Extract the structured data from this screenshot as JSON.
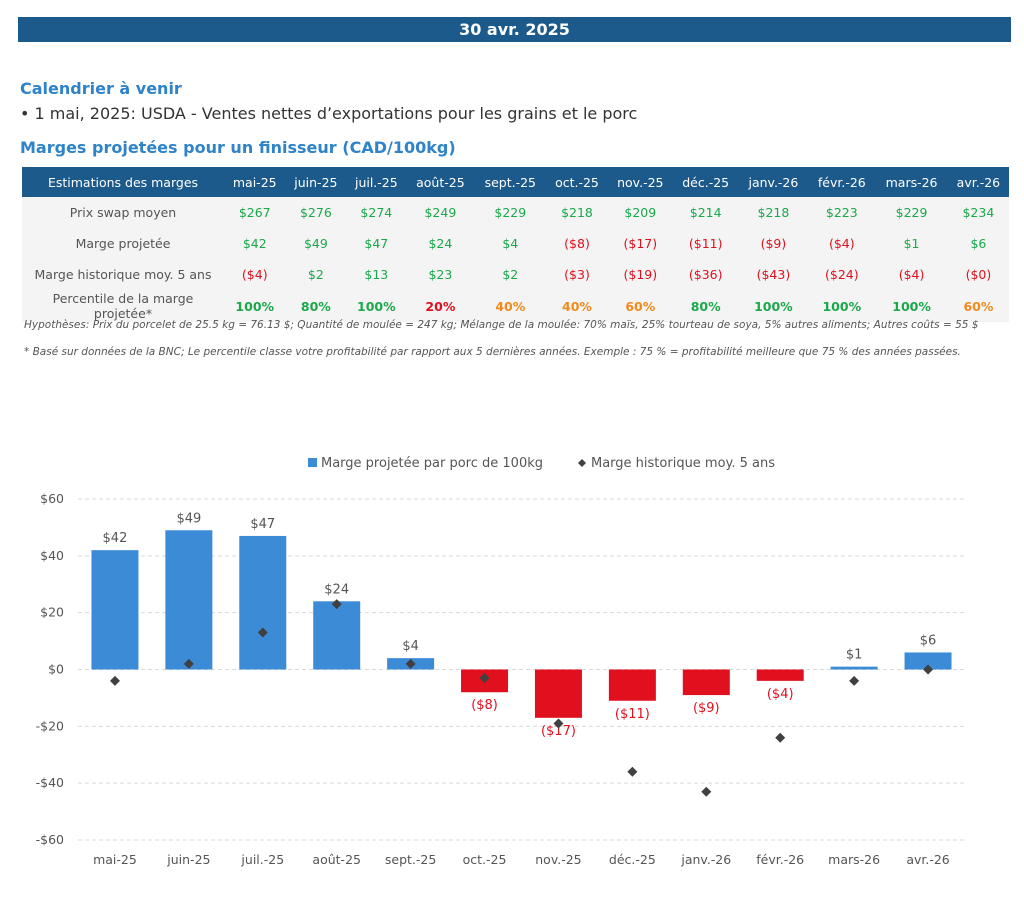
{
  "header": {
    "date": "30 avr. 2025"
  },
  "calendar": {
    "title": "Calendrier à venir",
    "item": "• 1 mai, 2025: USDA - Ventes nettes d’exportations pour les grains et le porc"
  },
  "margins_title": "Marges projetées pour un finisseur (CAD/100kg)",
  "table": {
    "corner": "Estimations des marges",
    "months": [
      "mai-25",
      "juin-25",
      "juil.-25",
      "août-25",
      "sept.-25",
      "oct.-25",
      "nov.-25",
      "déc.-25",
      "janv.-26",
      "févr.-26",
      "mars-26",
      "avr.-26"
    ],
    "rows": [
      {
        "label": "Prix swap moyen",
        "cells": [
          "$267",
          "$276",
          "$274",
          "$249",
          "$229",
          "$218",
          "$209",
          "$214",
          "$218",
          "$223",
          "$229",
          "$234"
        ],
        "colors": [
          "#1aa84a",
          "#1aa84a",
          "#1aa84a",
          "#1aa84a",
          "#1aa84a",
          "#1aa84a",
          "#1aa84a",
          "#1aa84a",
          "#1aa84a",
          "#1aa84a",
          "#1aa84a",
          "#1aa84a"
        ]
      },
      {
        "label": "Marge projetée",
        "cells": [
          "$42",
          "$49",
          "$47",
          "$24",
          "$4",
          "($8)",
          "($17)",
          "($11)",
          "($9)",
          "($4)",
          "$1",
          "$6"
        ],
        "colors": [
          "#1aa84a",
          "#1aa84a",
          "#1aa84a",
          "#1aa84a",
          "#1aa84a",
          "#e0101f",
          "#e0101f",
          "#e0101f",
          "#e0101f",
          "#e0101f",
          "#1aa84a",
          "#1aa84a"
        ]
      },
      {
        "label": "Marge historique moy. 5 ans",
        "cells": [
          "($4)",
          "$2",
          "$13",
          "$23",
          "$2",
          "($3)",
          "($19)",
          "($36)",
          "($43)",
          "($24)",
          "($4)",
          "($0)"
        ],
        "colors": [
          "#e0101f",
          "#1aa84a",
          "#1aa84a",
          "#1aa84a",
          "#1aa84a",
          "#e0101f",
          "#e0101f",
          "#e0101f",
          "#e0101f",
          "#e0101f",
          "#e0101f",
          "#e0101f"
        ]
      },
      {
        "label": "Percentile de la marge projetée*",
        "cells": [
          "100%",
          "80%",
          "100%",
          "20%",
          "40%",
          "40%",
          "60%",
          "80%",
          "100%",
          "100%",
          "100%",
          "60%"
        ],
        "colors": [
          "#1aa84a",
          "#1aa84a",
          "#1aa84a",
          "#e0101f",
          "#f08a1c",
          "#f08a1c",
          "#f08a1c",
          "#1aa84a",
          "#1aa84a",
          "#1aa84a",
          "#1aa84a",
          "#f08a1c"
        ]
      }
    ]
  },
  "notes": {
    "hypotheses": "Hypothèses: Prix du porcelet de 25.5 kg = 76.13 $; Quantité de moulée = 247 kg; Mélange de la moulée: 70% maïs, 25% tourteau de soya, 5% autres aliments; Autres coûts = 55 $",
    "footnote": "* Basé sur données de la BNC; Le percentile classe votre profitabilité par rapport aux 5 dernières années. Exemple : 75 % = profitabilité meilleure que 75 % des années passées."
  },
  "chart_data": {
    "type": "bar",
    "categories": [
      "mai-25",
      "juin-25",
      "juil.-25",
      "août-25",
      "sept.-25",
      "oct.-25",
      "nov.-25",
      "déc.-25",
      "janv.-26",
      "févr.-26",
      "mars-26",
      "avr.-26"
    ],
    "series": [
      {
        "name": "Marge projetée par porc de 100kg",
        "kind": "bar",
        "values": [
          42,
          49,
          47,
          24,
          4,
          -8,
          -17,
          -11,
          -9,
          -4,
          1,
          6
        ],
        "labels": [
          "$42",
          "$49",
          "$47",
          "$24",
          "$4",
          "($8)",
          "($17)",
          "($11)",
          "($9)",
          "($4)",
          "$1",
          "$6"
        ],
        "pos_color": "#3c8bd6",
        "neg_color": "#e0101f"
      },
      {
        "name": "Marge historique moy. 5 ans",
        "kind": "marker",
        "values": [
          -4,
          2,
          13,
          23,
          2,
          -3,
          -19,
          -36,
          -43,
          -24,
          -4,
          0
        ],
        "color": "#404040"
      }
    ],
    "ylim": [
      -60,
      60
    ],
    "yticks": [
      60,
      40,
      20,
      0,
      -20,
      -40,
      -60
    ],
    "ytick_labels": [
      "$60",
      "$40",
      "$20",
      "$0",
      "-$20",
      "-$40",
      "-$60"
    ],
    "grid": true,
    "legend": "top"
  }
}
